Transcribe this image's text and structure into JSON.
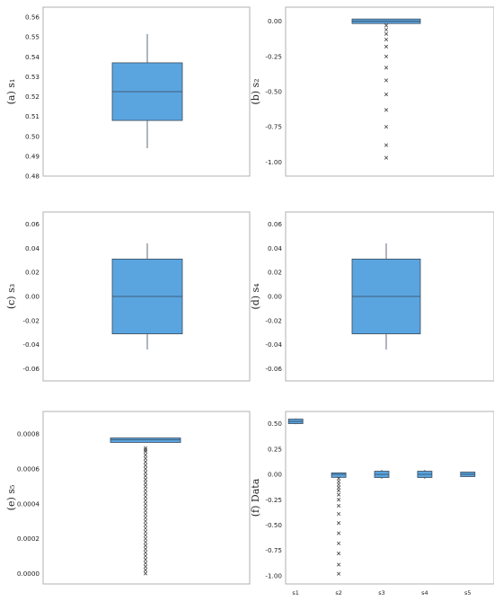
{
  "colors": {
    "box_fill": "#5aa5e0",
    "box_stroke": "#3b4a5a",
    "frame": "#b0b0b0",
    "flier": "#444444"
  },
  "chart_data": [
    {
      "id": "a",
      "type": "box",
      "panel_label": "(a)",
      "ylabel": "s₁",
      "ylim": [
        0.48,
        0.565
      ],
      "yticks": [
        0.48,
        0.49,
        0.5,
        0.51,
        0.52,
        0.53,
        0.54,
        0.55,
        0.56
      ],
      "ytick_labels": [
        "0.48",
        "0.49",
        "0.50",
        "0.51",
        "0.52",
        "0.53",
        "0.54",
        "0.55",
        "0.56"
      ],
      "boxes": [
        {
          "whisker_low": 0.494,
          "q1": 0.508,
          "median": 0.5225,
          "q3": 0.537,
          "whisker_high": 0.5515,
          "outliers": []
        }
      ]
    },
    {
      "id": "b",
      "type": "box",
      "panel_label": "(b)",
      "ylabel": "s₂",
      "ylim": [
        -1.1,
        0.1
      ],
      "yticks": [
        0.0,
        -0.25,
        -0.5,
        -0.75,
        -1.0
      ],
      "ytick_labels": [
        "0.00",
        "-0.25",
        "-0.50",
        "-0.75",
        "-1.00"
      ],
      "boxes": [
        {
          "whisker_low": -0.005,
          "q1": -0.005,
          "median": 0.0,
          "q3": 0.005,
          "whisker_high": 0.005,
          "outliers": [
            -0.03,
            -0.06,
            -0.09,
            -0.13,
            -0.18,
            -0.25,
            -0.33,
            -0.42,
            -0.52,
            -0.63,
            -0.75,
            -0.88,
            -0.97
          ]
        }
      ]
    },
    {
      "id": "c",
      "type": "box",
      "panel_label": "(c)",
      "ylabel": "s₃",
      "ylim": [
        -0.07,
        0.07
      ],
      "yticks": [
        0.06,
        0.04,
        0.02,
        0.0,
        -0.02,
        -0.04,
        -0.06
      ],
      "ytick_labels": [
        "0.06",
        "0.04",
        "0.02",
        "0.00",
        "-0.02",
        "-0.04",
        "-0.06"
      ],
      "boxes": [
        {
          "whisker_low": -0.044,
          "q1": -0.031,
          "median": 0.0,
          "q3": 0.031,
          "whisker_high": 0.044,
          "outliers": []
        }
      ]
    },
    {
      "id": "d",
      "type": "box",
      "panel_label": "(d)",
      "ylabel": "s₄",
      "ylim": [
        -0.07,
        0.07
      ],
      "yticks": [
        0.06,
        0.04,
        0.02,
        0.0,
        -0.02,
        -0.04,
        -0.06
      ],
      "ytick_labels": [
        "0.06",
        "0.04",
        "0.02",
        "0.00",
        "-0.02",
        "-0.04",
        "-0.06"
      ],
      "boxes": [
        {
          "whisker_low": -0.044,
          "q1": -0.031,
          "median": 0.0,
          "q3": 0.031,
          "whisker_high": 0.044,
          "outliers": []
        }
      ]
    },
    {
      "id": "e",
      "type": "box",
      "panel_label": "(e)",
      "ylabel": "s₅",
      "ylim": [
        -6e-05,
        0.00093
      ],
      "yticks": [
        0.0,
        0.0002,
        0.0004,
        0.0006,
        0.0008
      ],
      "ytick_labels": [
        "0.0000",
        "0.0002",
        "0.0004",
        "0.0006",
        "0.0008"
      ],
      "boxes": [
        {
          "whisker_low": 0.000755,
          "q1": 0.000755,
          "median": 0.000767,
          "q3": 0.000775,
          "whisker_high": 0.000775,
          "outliers": [
            0.0,
            2e-05,
            4e-05,
            6e-05,
            8e-05,
            0.0001,
            0.00012,
            0.00014,
            0.00016,
            0.00018,
            0.0002,
            0.00022,
            0.00024,
            0.00026,
            0.00028,
            0.0003,
            0.00032,
            0.00034,
            0.00036,
            0.00038,
            0.0004,
            0.00042,
            0.00044,
            0.00046,
            0.00048,
            0.0005,
            0.00052,
            0.00054,
            0.00056,
            0.00058,
            0.0006,
            0.00062,
            0.00064,
            0.00066,
            0.00068,
            0.0007,
            0.00071,
            0.00072
          ]
        }
      ]
    },
    {
      "id": "f",
      "type": "box",
      "panel_label": "(f)",
      "ylabel": "Data",
      "ylim": [
        -1.08,
        0.62
      ],
      "yticks": [
        0.5,
        0.25,
        0.0,
        -0.25,
        -0.5,
        -0.75,
        -1.0
      ],
      "ytick_labels": [
        "0.50",
        "0.25",
        "0.00",
        "-0.25",
        "-0.50",
        "-0.75",
        "-1.00"
      ],
      "categories": [
        "s1",
        "s2",
        "s3",
        "s4",
        "s5"
      ],
      "boxes": [
        {
          "whisker_low": 0.494,
          "q1": 0.508,
          "median": 0.522,
          "q3": 0.537,
          "whisker_high": 0.551,
          "outliers": []
        },
        {
          "whisker_low": -0.02,
          "q1": -0.02,
          "median": 0.0,
          "q3": 0.005,
          "whisker_high": 0.005,
          "outliers": [
            -0.04,
            -0.07,
            -0.1,
            -0.13,
            -0.16,
            -0.2,
            -0.25,
            -0.31,
            -0.39,
            -0.48,
            -0.58,
            -0.68,
            -0.78,
            -0.89,
            -0.98
          ]
        },
        {
          "whisker_low": -0.044,
          "q1": -0.031,
          "median": 0.0,
          "q3": 0.031,
          "whisker_high": 0.044,
          "outliers": []
        },
        {
          "whisker_low": -0.044,
          "q1": -0.031,
          "median": 0.0,
          "q3": 0.031,
          "whisker_high": 0.044,
          "outliers": []
        },
        {
          "whisker_low": 0.0,
          "q1": 0.0,
          "median": 0.0008,
          "q3": 0.0008,
          "whisker_high": 0.0008,
          "outliers": []
        }
      ]
    }
  ]
}
